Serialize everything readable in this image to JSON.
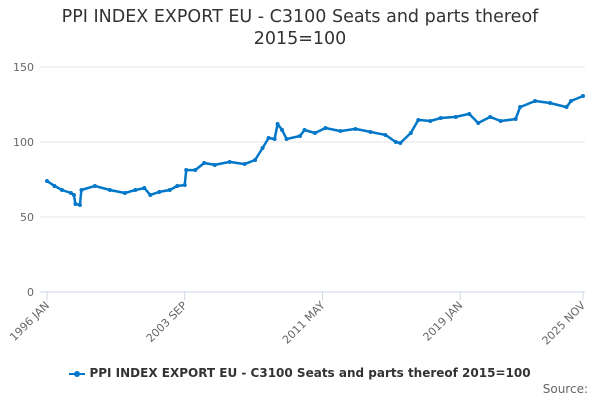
{
  "chart_data": {
    "type": "line",
    "title": "PPI INDEX EXPORT EU - C3100 Seats and parts thereof 2015=100",
    "title_lines": [
      "PPI INDEX EXPORT EU - C3100 Seats and parts thereof",
      "2015=100"
    ],
    "xlabel": "",
    "ylabel": "",
    "x_range": [
      "1996-01",
      "2025-11"
    ],
    "ylim": [
      0,
      150
    ],
    "y_ticks": [
      "0",
      "50",
      "100",
      "150"
    ],
    "x_tick_labels": [
      {
        "label": "1996 JAN",
        "date": "1996-01"
      },
      {
        "label": "2003 SEP",
        "date": "2003-09"
      },
      {
        "label": "2011 MAY",
        "date": "2011-05"
      },
      {
        "label": "2019 JAN",
        "date": "2019-01"
      },
      {
        "label": "2025 NOV",
        "date": "2025-11"
      }
    ],
    "grid": true,
    "legend_position": "bottom",
    "series": [
      {
        "name": "PPI INDEX EXPORT EU - C3100 Seats and parts thereof 2015=100",
        "color": "#0077c8",
        "points": [
          [
            "1996-01",
            74
          ],
          [
            "1996-06",
            70.7
          ],
          [
            "1996-11",
            68
          ],
          [
            "1997-05",
            66
          ],
          [
            "1997-07",
            64.7
          ],
          [
            "1997-08",
            58.7
          ],
          [
            "1997-11",
            58
          ],
          [
            "1997-12",
            68
          ],
          [
            "1998-09",
            70.7
          ],
          [
            "1999-07",
            68
          ],
          [
            "2000-05",
            66
          ],
          [
            "2000-12",
            68
          ],
          [
            "2001-06",
            69.3
          ],
          [
            "2001-10",
            64.7
          ],
          [
            "2002-04",
            66.7
          ],
          [
            "2002-11",
            68
          ],
          [
            "2003-04",
            70.7
          ],
          [
            "2003-09",
            71.3
          ],
          [
            "2003-10",
            81.3
          ],
          [
            "2004-04",
            81.3
          ],
          [
            "2004-10",
            86
          ],
          [
            "2005-05",
            84.7
          ],
          [
            "2006-03",
            86.7
          ],
          [
            "2007-01",
            85.3
          ],
          [
            "2007-08",
            88
          ],
          [
            "2008-01",
            96
          ],
          [
            "2008-05",
            102.7
          ],
          [
            "2008-09",
            102
          ],
          [
            "2008-11",
            112
          ],
          [
            "2009-02",
            108
          ],
          [
            "2009-05",
            102
          ],
          [
            "2010-02",
            104
          ],
          [
            "2010-05",
            108
          ],
          [
            "2010-12",
            106
          ],
          [
            "2011-07",
            109.3
          ],
          [
            "2012-05",
            107.3
          ],
          [
            "2013-03",
            108.7
          ],
          [
            "2014-01",
            106.7
          ],
          [
            "2014-11",
            104.7
          ],
          [
            "2015-06",
            100
          ],
          [
            "2015-09",
            99.3
          ],
          [
            "2016-04",
            106
          ],
          [
            "2016-09",
            114.7
          ],
          [
            "2017-05",
            114
          ],
          [
            "2017-12",
            116
          ],
          [
            "2018-10",
            116.7
          ],
          [
            "2019-07",
            118.7
          ],
          [
            "2020-01",
            112.7
          ],
          [
            "2020-09",
            116.7
          ],
          [
            "2021-04",
            114
          ],
          [
            "2022-02",
            115.3
          ],
          [
            "2022-05",
            123.3
          ],
          [
            "2023-03",
            127.3
          ],
          [
            "2024-01",
            126
          ],
          [
            "2024-12",
            123.3
          ],
          [
            "2025-03",
            127.3
          ],
          [
            "2025-11",
            130.7
          ]
        ]
      }
    ]
  },
  "legend": {
    "label": "PPI INDEX EXPORT EU - C3100 Seats and parts thereof 2015=100"
  },
  "source": {
    "label": "Source:"
  }
}
